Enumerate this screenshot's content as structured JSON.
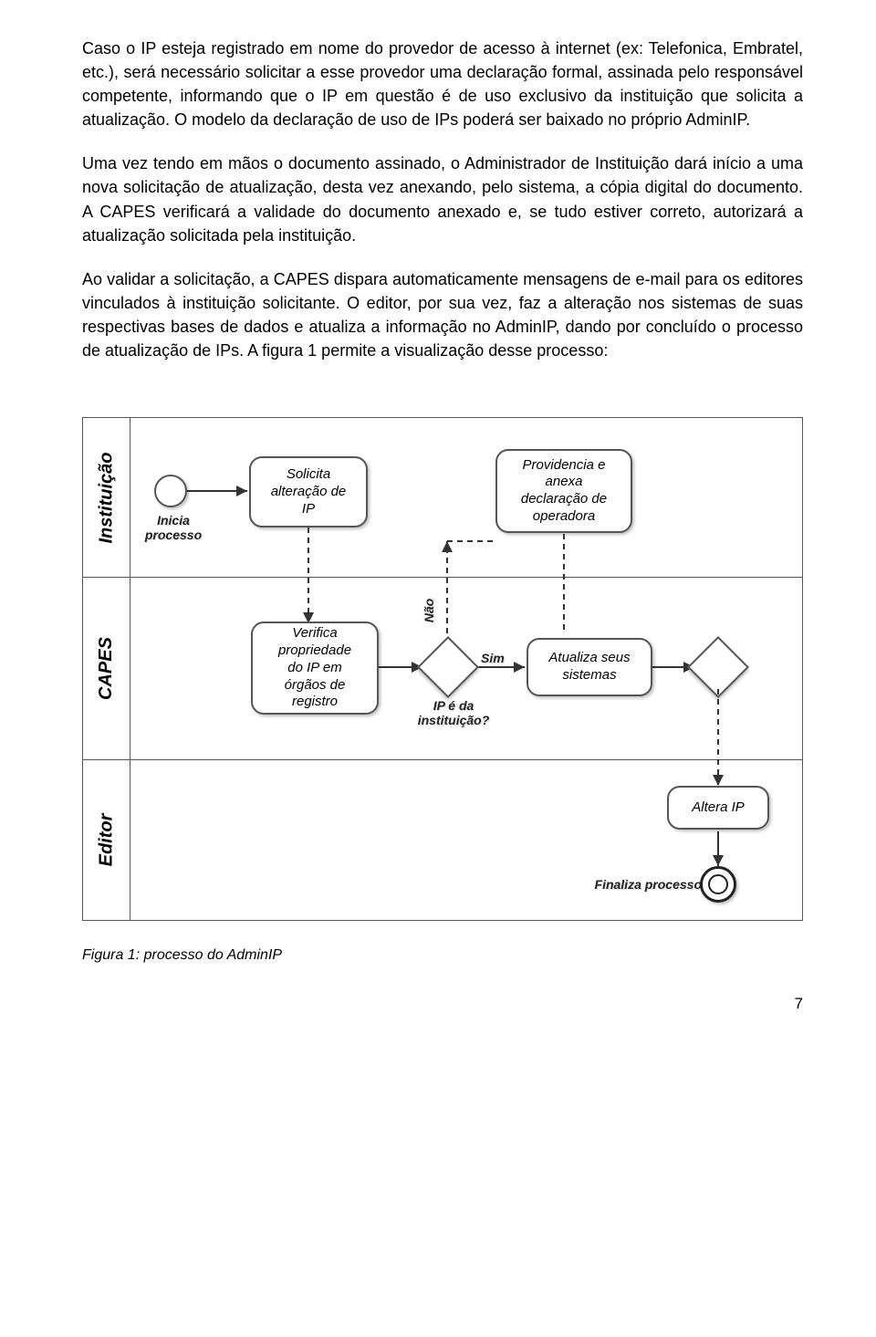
{
  "paragraphs": {
    "p1": "Caso o IP esteja registrado em nome do provedor de acesso à internet (ex: Telefonica, Embratel, etc.), será necessário solicitar a esse provedor uma declaração formal, assinada pelo responsável competente, informando que o IP em questão é de uso exclusivo da instituição que solicita a atualização. O modelo da declaração de uso de IPs poderá ser baixado no próprio AdminIP.",
    "p2": "Uma vez tendo em mãos o documento assinado, o Administrador de Instituição dará início a uma nova solicitação de atualização, desta vez anexando, pelo sistema, a cópia digital do documento. A CAPES verificará a validade do documento anexado e, se tudo estiver correto, autorizará a atualização solicitada pela instituição.",
    "p3": "Ao validar a solicitação, a CAPES dispara automaticamente mensagens de e-mail para os editores vinculados à instituição solicitante. O editor, por sua vez, faz a alteração nos sistemas de suas respectivas bases de dados e atualiza a informação no AdminIP, dando por concluído o processo de atualização de IPs. A figura 1 permite a visualização desse processo:"
  },
  "diagram": {
    "lanes": {
      "l1": "Instituição",
      "l2": "CAPES",
      "l3": "Editor"
    },
    "labels": {
      "inicia": "Inicia\nprocesso",
      "solicita": "Solicita\nalteração de\nIP",
      "providencia": "Providencia e\nanexa\ndeclaração de\noperadora",
      "verifica": "Verifica\npropriedade\ndo IP em\nórgãos de\nregistro",
      "atualiza": "Atualiza seus\nsistemas",
      "altera": "Altera IP",
      "finaliza": "Finaliza processo",
      "decision": "IP é da\ninstituição?",
      "sim": "Sim",
      "nao": "Não"
    }
  },
  "figure_caption": "Figura 1: processo do AdminIP",
  "page_number": "7"
}
